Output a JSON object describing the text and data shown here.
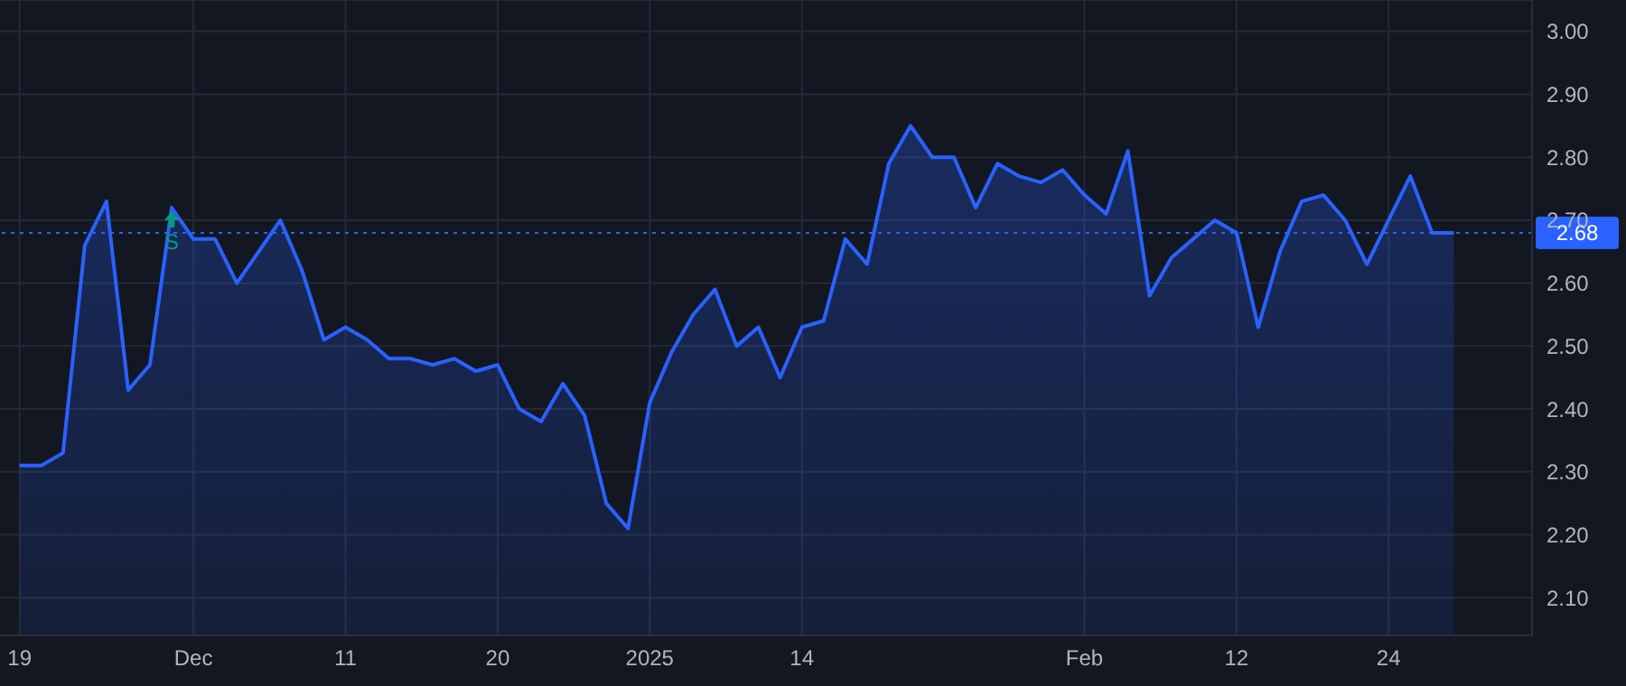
{
  "chart_data": {
    "type": "area",
    "categories": [
      "19",
      null,
      null,
      null,
      null,
      null,
      null,
      null,
      "Dec",
      null,
      null,
      null,
      null,
      null,
      null,
      "11",
      null,
      null,
      null,
      null,
      null,
      null,
      "20",
      null,
      null,
      null,
      null,
      null,
      null,
      "2025",
      null,
      null,
      null,
      null,
      null,
      null,
      "14",
      null,
      null,
      null,
      null,
      null,
      null,
      null,
      null,
      null,
      null,
      null,
      null,
      "Feb",
      null,
      null,
      null,
      null,
      null,
      null,
      "12",
      null,
      null,
      null,
      null,
      null,
      null,
      "24",
      null,
      null,
      null
    ],
    "series": [
      {
        "color": "#2962ff",
        "values": [
          2.31,
          2.31,
          2.33,
          2.66,
          2.73,
          2.43,
          2.47,
          2.72,
          2.67,
          2.67,
          2.6,
          2.65,
          2.7,
          2.62,
          2.51,
          2.53,
          2.51,
          2.48,
          2.48,
          2.47,
          2.48,
          2.46,
          2.47,
          2.4,
          2.38,
          2.44,
          2.39,
          2.25,
          2.21,
          2.41,
          2.49,
          2.55,
          2.59,
          2.5,
          2.53,
          2.45,
          2.53,
          2.54,
          2.67,
          2.63,
          2.79,
          2.85,
          2.8,
          2.8,
          2.72,
          2.79,
          2.77,
          2.76,
          2.78,
          2.74,
          2.71,
          2.81,
          2.58,
          2.64,
          2.67,
          2.7,
          2.68,
          2.53,
          2.65,
          2.73,
          2.74,
          2.7,
          2.63,
          2.7,
          2.77,
          2.68,
          2.68
        ]
      }
    ],
    "ylim": [
      2.04,
      3.05
    ],
    "yticks": [
      {
        "value": 2.1,
        "label": "2.10"
      },
      {
        "value": 2.2,
        "label": "2.20"
      },
      {
        "value": 2.3,
        "label": "2.30"
      },
      {
        "value": 2.4,
        "label": "2.40"
      },
      {
        "value": 2.5,
        "label": "2.50"
      },
      {
        "value": 2.6,
        "label": "2.60"
      },
      {
        "value": 2.7,
        "label": "2.70"
      },
      {
        "value": 2.8,
        "label": "2.80"
      },
      {
        "value": 2.9,
        "label": "2.90"
      },
      {
        "value": 3.0,
        "label": "3.00"
      }
    ],
    "grid": true,
    "legend": false,
    "marker": "none",
    "line_style": "solid",
    "ref_lines": [
      {
        "axis": "y",
        "value": 2.68,
        "label": "2.68",
        "color": "#2962ff",
        "line_style": "dotted"
      }
    ],
    "annotations": [
      {
        "text": "S",
        "y": 2.72
      }
    ]
  }
}
